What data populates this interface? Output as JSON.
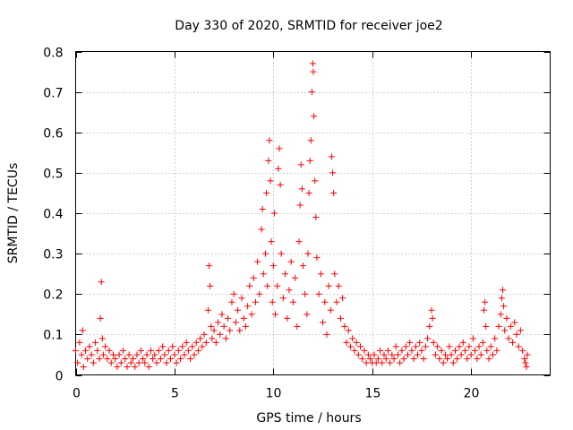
{
  "chart_data": {
    "type": "scatter",
    "title": "Day 330 of 2020, SRMTID for receiver joe2",
    "xlabel": "GPS time / hours",
    "ylabel": "SRMTID / TECUs",
    "xlim": [
      0,
      24
    ],
    "ylim": [
      0,
      0.8
    ],
    "xticks": [
      0,
      5,
      10,
      15,
      20
    ],
    "xtick_labels": [
      "0",
      "5",
      "10",
      "15",
      "20"
    ],
    "yticks": [
      0,
      0.1,
      0.2,
      0.3,
      0.4,
      0.5,
      0.6,
      0.7,
      0.8
    ],
    "ytick_labels": [
      "0",
      "0.1",
      "0.2",
      "0.3",
      "0.4",
      "0.5",
      "0.6",
      "0.7",
      "0.8"
    ],
    "grid": true,
    "marker": "plus",
    "color": "#ff0000",
    "series": [
      {
        "name": "SRMTID",
        "points": [
          [
            0.0,
            0.06
          ],
          [
            0.1,
            0.03
          ],
          [
            0.2,
            0.08
          ],
          [
            0.3,
            0.05
          ],
          [
            0.35,
            0.11
          ],
          [
            0.4,
            0.02
          ],
          [
            0.5,
            0.06
          ],
          [
            0.6,
            0.04
          ],
          [
            0.7,
            0.07
          ],
          [
            0.8,
            0.05
          ],
          [
            0.9,
            0.03
          ],
          [
            1.0,
            0.08
          ],
          [
            1.1,
            0.06
          ],
          [
            1.2,
            0.04
          ],
          [
            1.25,
            0.14
          ],
          [
            1.3,
            0.23
          ],
          [
            1.35,
            0.09
          ],
          [
            1.4,
            0.05
          ],
          [
            1.5,
            0.07
          ],
          [
            1.6,
            0.04
          ],
          [
            1.7,
            0.06
          ],
          [
            1.8,
            0.03
          ],
          [
            1.9,
            0.05
          ],
          [
            2.0,
            0.04
          ],
          [
            2.1,
            0.02
          ],
          [
            2.2,
            0.05
          ],
          [
            2.3,
            0.03
          ],
          [
            2.4,
            0.06
          ],
          [
            2.5,
            0.04
          ],
          [
            2.6,
            0.02
          ],
          [
            2.7,
            0.05
          ],
          [
            2.8,
            0.03
          ],
          [
            2.9,
            0.04
          ],
          [
            3.0,
            0.02
          ],
          [
            3.1,
            0.05
          ],
          [
            3.2,
            0.03
          ],
          [
            3.3,
            0.06
          ],
          [
            3.4,
            0.04
          ],
          [
            3.5,
            0.03
          ],
          [
            3.6,
            0.05
          ],
          [
            3.7,
            0.02
          ],
          [
            3.8,
            0.06
          ],
          [
            3.9,
            0.04
          ],
          [
            4.0,
            0.05
          ],
          [
            4.1,
            0.03
          ],
          [
            4.2,
            0.06
          ],
          [
            4.3,
            0.04
          ],
          [
            4.4,
            0.07
          ],
          [
            4.5,
            0.05
          ],
          [
            4.6,
            0.03
          ],
          [
            4.7,
            0.06
          ],
          [
            4.8,
            0.04
          ],
          [
            4.9,
            0.07
          ],
          [
            5.0,
            0.05
          ],
          [
            5.1,
            0.03
          ],
          [
            5.2,
            0.06
          ],
          [
            5.3,
            0.04
          ],
          [
            5.4,
            0.07
          ],
          [
            5.5,
            0.05
          ],
          [
            5.6,
            0.08
          ],
          [
            5.7,
            0.06
          ],
          [
            5.8,
            0.04
          ],
          [
            5.9,
            0.07
          ],
          [
            6.0,
            0.05
          ],
          [
            6.1,
            0.08
          ],
          [
            6.2,
            0.06
          ],
          [
            6.3,
            0.09
          ],
          [
            6.4,
            0.07
          ],
          [
            6.5,
            0.1
          ],
          [
            6.6,
            0.08
          ],
          [
            6.7,
            0.16
          ],
          [
            6.75,
            0.27
          ],
          [
            6.8,
            0.22
          ],
          [
            6.85,
            0.12
          ],
          [
            6.9,
            0.09
          ],
          [
            7.0,
            0.11
          ],
          [
            7.1,
            0.08
          ],
          [
            7.2,
            0.13
          ],
          [
            7.3,
            0.1
          ],
          [
            7.4,
            0.15
          ],
          [
            7.5,
            0.12
          ],
          [
            7.6,
            0.09
          ],
          [
            7.7,
            0.14
          ],
          [
            7.8,
            0.11
          ],
          [
            7.9,
            0.18
          ],
          [
            8.0,
            0.2
          ],
          [
            8.1,
            0.13
          ],
          [
            8.2,
            0.16
          ],
          [
            8.3,
            0.11
          ],
          [
            8.4,
            0.19
          ],
          [
            8.5,
            0.14
          ],
          [
            8.6,
            0.12
          ],
          [
            8.7,
            0.17
          ],
          [
            8.8,
            0.22
          ],
          [
            8.9,
            0.15
          ],
          [
            9.0,
            0.24
          ],
          [
            9.1,
            0.18
          ],
          [
            9.2,
            0.28
          ],
          [
            9.3,
            0.2
          ],
          [
            9.4,
            0.36
          ],
          [
            9.45,
            0.41
          ],
          [
            9.5,
            0.25
          ],
          [
            9.6,
            0.3
          ],
          [
            9.65,
            0.45
          ],
          [
            9.7,
            0.22
          ],
          [
            9.75,
            0.53
          ],
          [
            9.8,
            0.58
          ],
          [
            9.85,
            0.48
          ],
          [
            9.9,
            0.33
          ],
          [
            9.95,
            0.18
          ],
          [
            10.0,
            0.27
          ],
          [
            10.05,
            0.4
          ],
          [
            10.1,
            0.15
          ],
          [
            10.2,
            0.22
          ],
          [
            10.25,
            0.51
          ],
          [
            10.3,
            0.56
          ],
          [
            10.35,
            0.47
          ],
          [
            10.4,
            0.3
          ],
          [
            10.5,
            0.19
          ],
          [
            10.6,
            0.25
          ],
          [
            10.7,
            0.14
          ],
          [
            10.8,
            0.21
          ],
          [
            10.9,
            0.28
          ],
          [
            11.0,
            0.18
          ],
          [
            11.1,
            0.24
          ],
          [
            11.2,
            0.12
          ],
          [
            11.3,
            0.33
          ],
          [
            11.35,
            0.42
          ],
          [
            11.4,
            0.52
          ],
          [
            11.45,
            0.46
          ],
          [
            11.5,
            0.27
          ],
          [
            11.6,
            0.2
          ],
          [
            11.7,
            0.15
          ],
          [
            11.75,
            0.3
          ],
          [
            11.8,
            0.45
          ],
          [
            11.85,
            0.53
          ],
          [
            11.9,
            0.58
          ],
          [
            11.95,
            0.7
          ],
          [
            12.0,
            0.77
          ],
          [
            12.02,
            0.75
          ],
          [
            12.05,
            0.64
          ],
          [
            12.1,
            0.48
          ],
          [
            12.15,
            0.39
          ],
          [
            12.2,
            0.29
          ],
          [
            12.3,
            0.2
          ],
          [
            12.4,
            0.25
          ],
          [
            12.5,
            0.13
          ],
          [
            12.6,
            0.18
          ],
          [
            12.7,
            0.1
          ],
          [
            12.8,
            0.22
          ],
          [
            12.9,
            0.16
          ],
          [
            12.95,
            0.54
          ],
          [
            13.0,
            0.5
          ],
          [
            13.05,
            0.45
          ],
          [
            13.1,
            0.25
          ],
          [
            13.2,
            0.18
          ],
          [
            13.3,
            0.22
          ],
          [
            13.4,
            0.14
          ],
          [
            13.5,
            0.19
          ],
          [
            13.6,
            0.12
          ],
          [
            13.7,
            0.08
          ],
          [
            13.8,
            0.11
          ],
          [
            13.9,
            0.07
          ],
          [
            14.0,
            0.09
          ],
          [
            14.1,
            0.06
          ],
          [
            14.2,
            0.08
          ],
          [
            14.3,
            0.05
          ],
          [
            14.4,
            0.07
          ],
          [
            14.5,
            0.04
          ],
          [
            14.6,
            0.06
          ],
          [
            14.7,
            0.03
          ],
          [
            14.8,
            0.05
          ],
          [
            14.9,
            0.04
          ],
          [
            15.0,
            0.03
          ],
          [
            15.1,
            0.05
          ],
          [
            15.2,
            0.03
          ],
          [
            15.3,
            0.04
          ],
          [
            15.4,
            0.06
          ],
          [
            15.5,
            0.03
          ],
          [
            15.6,
            0.05
          ],
          [
            15.7,
            0.04
          ],
          [
            15.8,
            0.06
          ],
          [
            15.9,
            0.03
          ],
          [
            16.0,
            0.05
          ],
          [
            16.1,
            0.04
          ],
          [
            16.2,
            0.07
          ],
          [
            16.3,
            0.05
          ],
          [
            16.4,
            0.03
          ],
          [
            16.5,
            0.06
          ],
          [
            16.6,
            0.04
          ],
          [
            16.7,
            0.07
          ],
          [
            16.8,
            0.05
          ],
          [
            16.9,
            0.08
          ],
          [
            17.0,
            0.06
          ],
          [
            17.1,
            0.04
          ],
          [
            17.2,
            0.07
          ],
          [
            17.3,
            0.05
          ],
          [
            17.4,
            0.08
          ],
          [
            17.5,
            0.06
          ],
          [
            17.6,
            0.04
          ],
          [
            17.7,
            0.07
          ],
          [
            17.8,
            0.09
          ],
          [
            17.9,
            0.12
          ],
          [
            18.0,
            0.16
          ],
          [
            18.05,
            0.14
          ],
          [
            18.1,
            0.08
          ],
          [
            18.2,
            0.05
          ],
          [
            18.3,
            0.07
          ],
          [
            18.4,
            0.04
          ],
          [
            18.5,
            0.06
          ],
          [
            18.6,
            0.03
          ],
          [
            18.7,
            0.05
          ],
          [
            18.8,
            0.04
          ],
          [
            18.9,
            0.07
          ],
          [
            19.0,
            0.05
          ],
          [
            19.1,
            0.03
          ],
          [
            19.2,
            0.06
          ],
          [
            19.3,
            0.04
          ],
          [
            19.4,
            0.07
          ],
          [
            19.5,
            0.05
          ],
          [
            19.6,
            0.08
          ],
          [
            19.7,
            0.06
          ],
          [
            19.8,
            0.04
          ],
          [
            19.9,
            0.07
          ],
          [
            20.0,
            0.05
          ],
          [
            20.1,
            0.09
          ],
          [
            20.2,
            0.06
          ],
          [
            20.3,
            0.04
          ],
          [
            20.4,
            0.07
          ],
          [
            20.5,
            0.05
          ],
          [
            20.6,
            0.08
          ],
          [
            20.65,
            0.16
          ],
          [
            20.7,
            0.18
          ],
          [
            20.75,
            0.12
          ],
          [
            20.8,
            0.06
          ],
          [
            20.9,
            0.04
          ],
          [
            21.0,
            0.07
          ],
          [
            21.1,
            0.05
          ],
          [
            21.2,
            0.09
          ],
          [
            21.3,
            0.06
          ],
          [
            21.4,
            0.12
          ],
          [
            21.5,
            0.15
          ],
          [
            21.55,
            0.19
          ],
          [
            21.6,
            0.21
          ],
          [
            21.65,
            0.17
          ],
          [
            21.7,
            0.11
          ],
          [
            21.8,
            0.14
          ],
          [
            21.9,
            0.09
          ],
          [
            22.0,
            0.12
          ],
          [
            22.1,
            0.08
          ],
          [
            22.2,
            0.13
          ],
          [
            22.3,
            0.1
          ],
          [
            22.4,
            0.07
          ],
          [
            22.5,
            0.11
          ],
          [
            22.6,
            0.06
          ],
          [
            22.7,
            0.04
          ],
          [
            22.75,
            0.03
          ],
          [
            22.8,
            0.02
          ],
          [
            22.85,
            0.05
          ]
        ]
      }
    ]
  }
}
